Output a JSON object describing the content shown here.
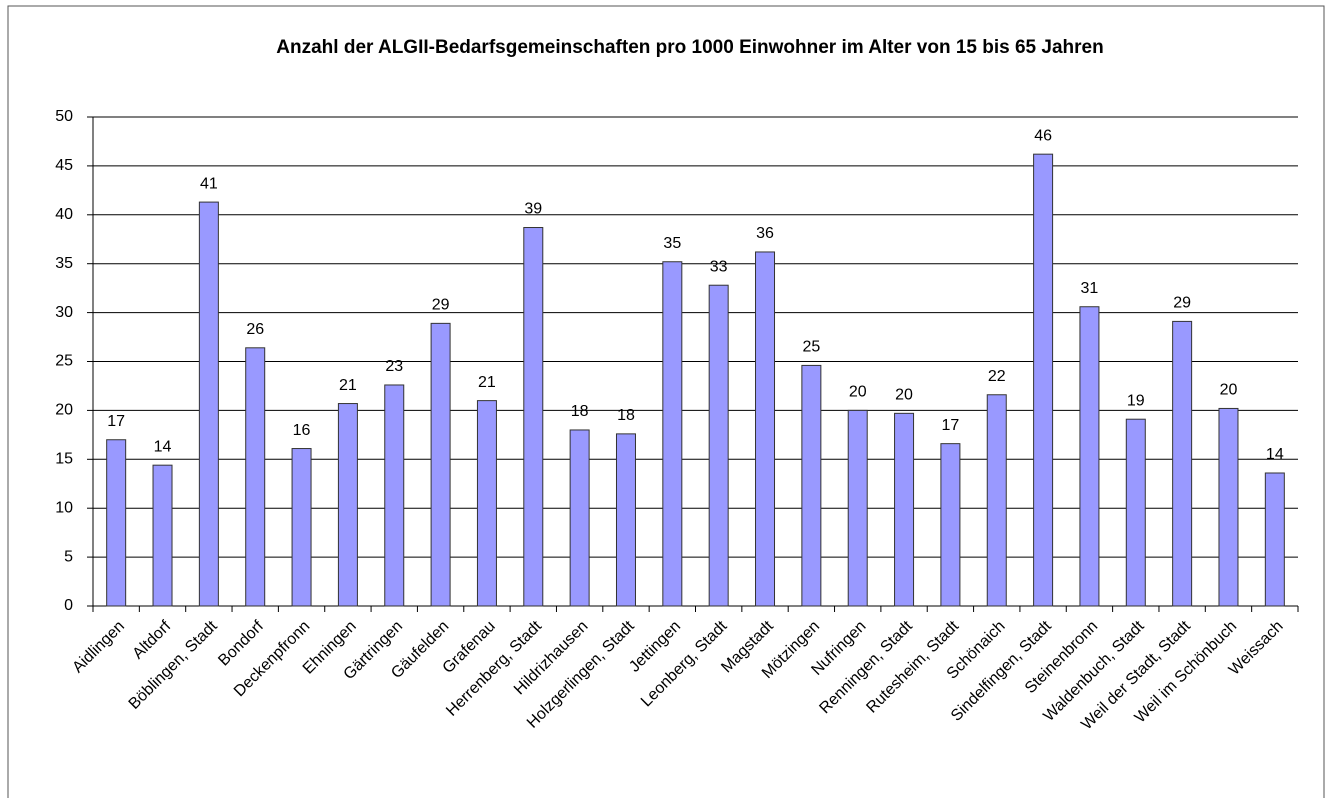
{
  "chart_data": {
    "type": "bar",
    "title": "Anzahl der ALGII-Bedarfsgemeinschaften pro 1000 Einwohner im Alter von 15 bis 65 Jahren",
    "categories": [
      "Aidlingen",
      "Altdorf",
      "Böblingen, Stadt",
      "Bondorf",
      "Deckenpfronn",
      "Ehningen",
      "Gärtringen",
      "Gäufelden",
      "Grafenau",
      "Herrenberg, Stadt",
      "Hildrizhausen",
      "Holzgerlingen, Stadt",
      "Jettingen",
      "Leonberg, Stadt",
      "Magstadt",
      "Mötzingen",
      "Nufringen",
      "Renningen, Stadt",
      "Rutesheim, Stadt",
      "Schönaich",
      "Sindelfingen, Stadt",
      "Steinenbronn",
      "Waldenbuch, Stadt",
      "Weil der Stadt, Stadt",
      "Weil im Schönbuch",
      "Weissach"
    ],
    "values": [
      17.0,
      14.4,
      41.3,
      26.4,
      16.1,
      20.7,
      22.6,
      28.9,
      21.0,
      38.7,
      18.0,
      17.6,
      35.2,
      32.8,
      36.2,
      24.6,
      20.0,
      19.7,
      16.6,
      21.6,
      46.2,
      30.6,
      19.1,
      29.1,
      20.2,
      13.6
    ],
    "value_labels": [
      "17",
      "14",
      "41",
      "26",
      "16",
      "21",
      "23",
      "29",
      "21",
      "39",
      "18",
      "18",
      "35",
      "33",
      "36",
      "25",
      "20",
      "20",
      "17",
      "22",
      "46",
      "31",
      "19",
      "29",
      "20",
      "14"
    ],
    "color": "#9999ff",
    "ylim": [
      0,
      50
    ],
    "yticks": [
      0,
      5,
      10,
      15,
      20,
      25,
      30,
      35,
      40,
      45,
      50
    ],
    "grid": true
  }
}
